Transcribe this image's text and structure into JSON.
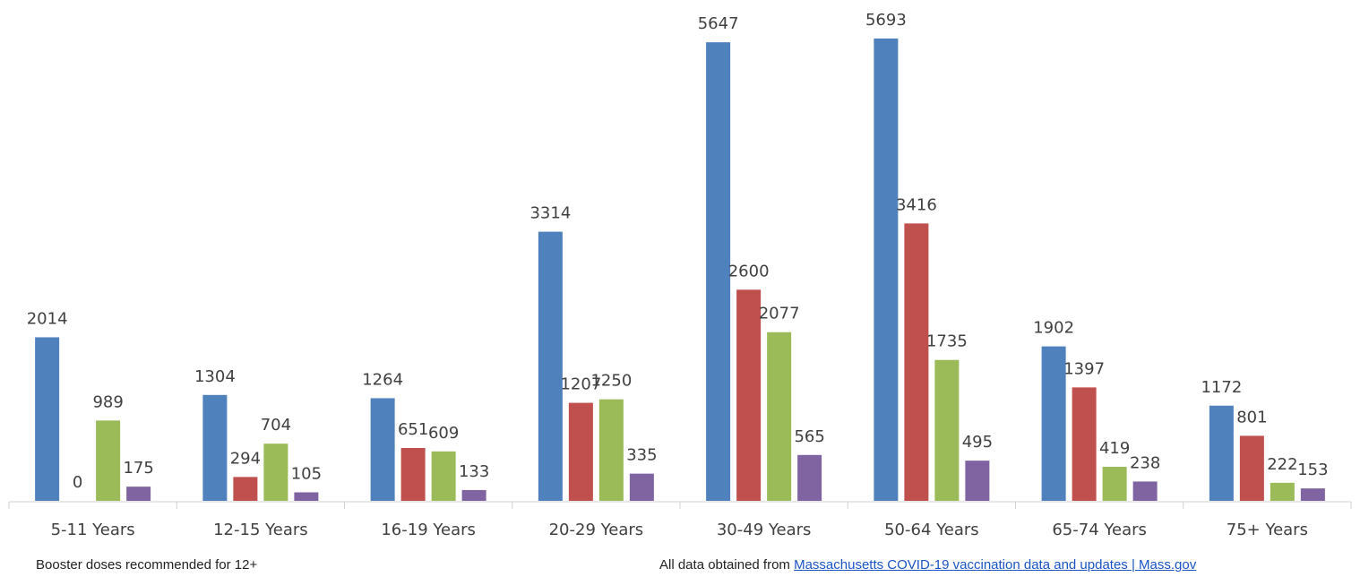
{
  "chart_data": {
    "type": "bar",
    "categories": [
      "5-11 Years",
      "12-15 Years",
      "16-19 Years",
      "20-29 Years",
      "30-49 Years",
      "50-64 Years",
      "65-74 Years",
      "75+ Years"
    ],
    "series": [
      {
        "values": [
          2014,
          1304,
          1264,
          3314,
          5647,
          5693,
          1902,
          1172
        ],
        "color": "#4f81bd"
      },
      {
        "values": [
          0,
          294,
          651,
          1207,
          2600,
          3416,
          1397,
          801
        ],
        "color": "#c0504d"
      },
      {
        "values": [
          989,
          704,
          609,
          1250,
          2077,
          1735,
          419,
          222
        ],
        "color": "#9bbb59"
      },
      {
        "values": [
          175,
          105,
          133,
          335,
          565,
          495,
          238,
          153
        ],
        "color": "#8064a2"
      }
    ],
    "ylim": [
      0,
      5700
    ],
    "grid": false,
    "legend": "none",
    "value_labels": true
  },
  "footer": {
    "left_note": "Booster doses recommended for 12+",
    "source_prefix": "All data obtained from ",
    "source_link_text": "Massachusetts COVID-19 vaccination data and updates | Mass.gov"
  }
}
